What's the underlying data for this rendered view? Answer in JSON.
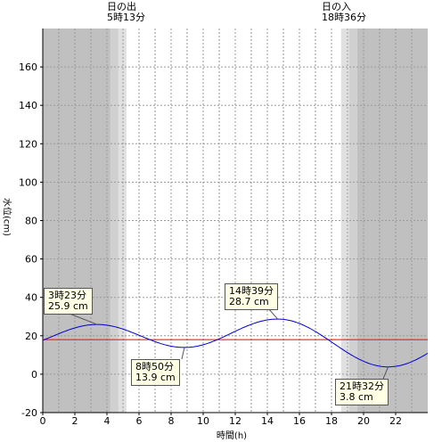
{
  "sunrise": {
    "label": "日の出",
    "time": "5時13分"
  },
  "sunset": {
    "label": "日の入",
    "time": "18時36分"
  },
  "annotations": [
    {
      "time": "3時23分",
      "value": "25.9 cm"
    },
    {
      "time": "8時50分",
      "value": "13.9 cm"
    },
    {
      "time": "14時39分",
      "value": "28.7 cm"
    },
    {
      "time": "21時32分",
      "value": "3.8 cm"
    }
  ],
  "chart_data": {
    "type": "line",
    "xlabel": "時間(h)",
    "ylabel": "水位(cm)",
    "xlim": [
      0,
      24
    ],
    "ylim": [
      -20,
      180
    ],
    "x_ticks": [
      0,
      2,
      4,
      6,
      8,
      10,
      12,
      14,
      16,
      18,
      20,
      22
    ],
    "y_ticks": [
      -20,
      0,
      20,
      40,
      60,
      80,
      100,
      120,
      140,
      160
    ],
    "reference_line": {
      "y": 18,
      "color": "#ff0000"
    },
    "extremes": [
      {
        "x": 3.383,
        "y": 25.9,
        "type": "high"
      },
      {
        "x": 8.833,
        "y": 13.9,
        "type": "low"
      },
      {
        "x": 14.65,
        "y": 28.7,
        "type": "high"
      },
      {
        "x": 21.533,
        "y": 3.8,
        "type": "low"
      }
    ],
    "start": {
      "x": 0,
      "y": 15.0
    },
    "end": {
      "x": 24,
      "y": 11.0
    },
    "line_color": "#0000cc",
    "night_color": "#c0c0c0",
    "twilight_color": "#e0e0e0",
    "sunrise_x": 5.217,
    "sunset_x": 18.6
  }
}
